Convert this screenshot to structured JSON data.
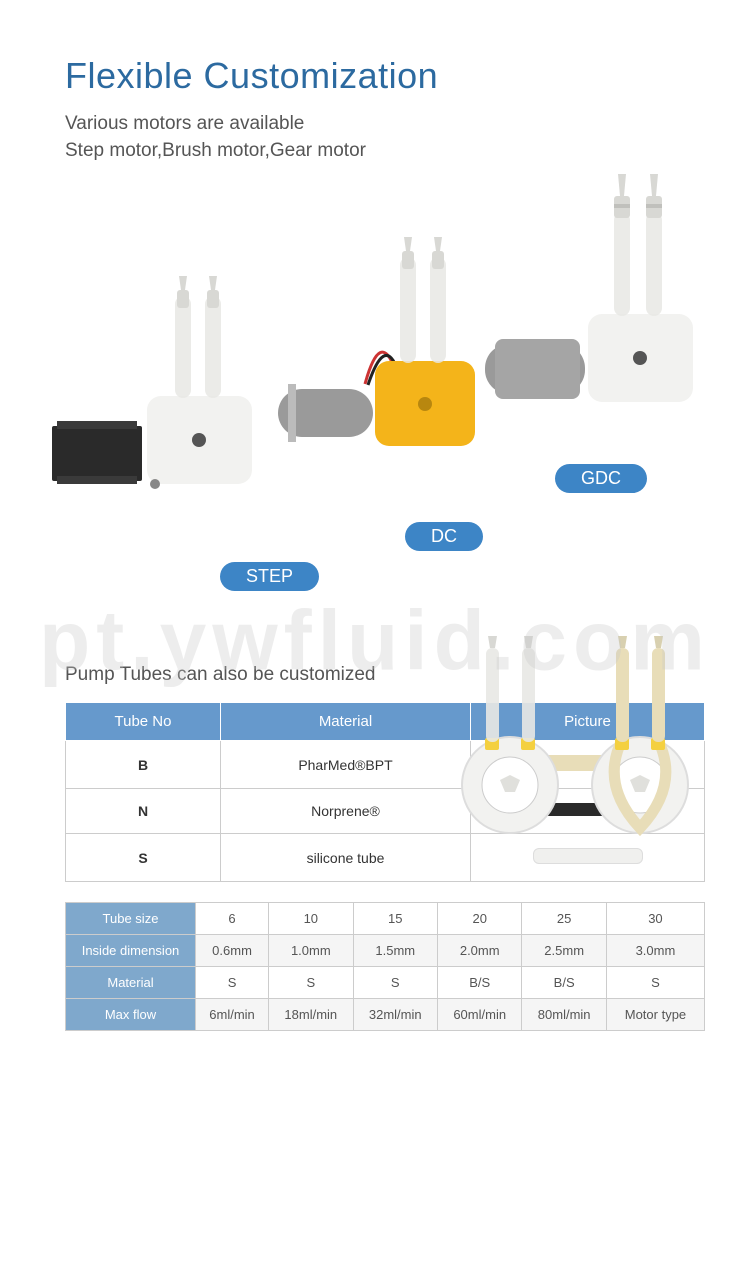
{
  "title": "Flexible Customization",
  "subtitle_line1": "Various motors are available",
  "subtitle_line2": "Step motor,Brush motor,Gear motor",
  "motor_labels": {
    "step": "STEP",
    "dc": "DC",
    "gdc": "GDC"
  },
  "colors": {
    "accent": "#3d85c6",
    "title": "#2c6aa0",
    "text": "#555555",
    "table_header": "#6699cc",
    "table_row_header": "#7fa8cc",
    "border": "#cccccc",
    "alt_row": "#f5f5f5",
    "motor_body_dark": "#2a2a2a",
    "motor_body_silver": "#9a9a9a",
    "pump_head_white": "#f2f2f0",
    "pump_head_yellow": "#f4b41a",
    "tube_translucent": "#e8e8e4",
    "tube_beige": "#e8ddb8",
    "tube_black": "#2a2a2a",
    "tube_white": "#f0f0ee",
    "wire_red": "#cc3333",
    "wire_black": "#222222"
  },
  "pump_tubes_title": "Pump Tubes can also be customized",
  "table1": {
    "headers": [
      "Tube No",
      "Material",
      "Picture"
    ],
    "rows": [
      {
        "no": "B",
        "material": "PharMed®BPT",
        "picture_color": "#e8ddb8",
        "picture_style": "beige"
      },
      {
        "no": "N",
        "material": "Norprene®",
        "picture_color": "#2a2a2a",
        "picture_style": "black"
      },
      {
        "no": "S",
        "material": "silicone tube",
        "picture_color": "#f0f0ee",
        "picture_style": "white"
      }
    ]
  },
  "table2": {
    "row_headers": [
      "Tube size",
      "Inside dimension",
      "Material",
      "Max flow"
    ],
    "columns": [
      "6",
      "10",
      "15",
      "20",
      "25",
      "30"
    ],
    "data": [
      [
        "6",
        "10",
        "15",
        "20",
        "25",
        "30"
      ],
      [
        "0.6mm",
        "1.0mm",
        "1.5mm",
        "2.0mm",
        "2.5mm",
        "3.0mm"
      ],
      [
        "S",
        "S",
        "S",
        "B/S",
        "B/S",
        "S"
      ],
      [
        "6ml/min",
        "18ml/min",
        "32ml/min",
        "60ml/min",
        "80ml/min",
        "Motor type"
      ]
    ]
  },
  "watermark": "pt.ywfluid.com"
}
